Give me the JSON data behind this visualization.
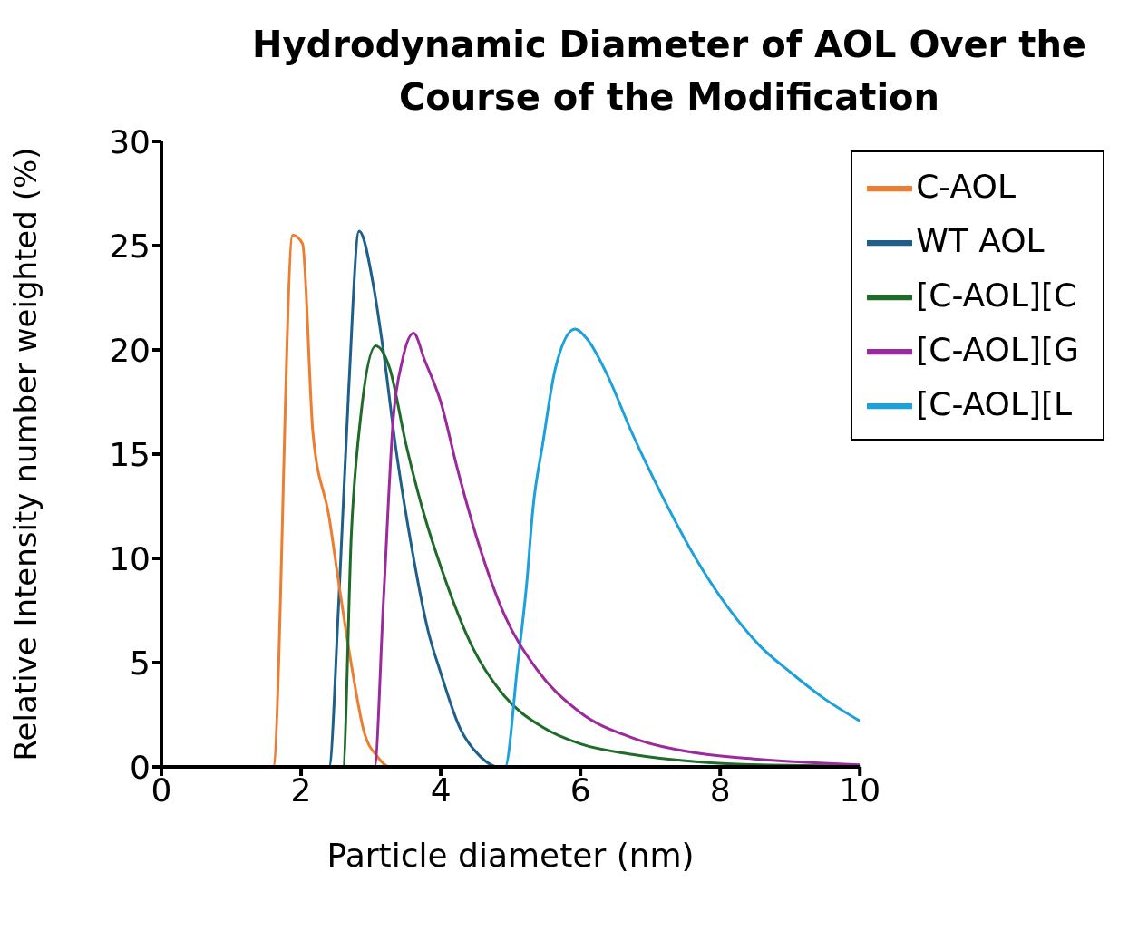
{
  "chart_data": {
    "type": "line",
    "title": "Hydrodynamic Diameter of AOL Over the Course of the Modification",
    "xlabel": "Particle diameter (nm)",
    "ylabel": "Relative Intensity number weighted (%)",
    "xlim": [
      0,
      10
    ],
    "xticks": [
      0,
      2,
      4,
      6,
      8,
      10
    ],
    "ylim": [
      0,
      30
    ],
    "yticks": [
      0,
      5,
      10,
      15,
      20,
      25,
      30
    ],
    "grid": false,
    "legend": "top right",
    "marker": "none",
    "line_style": "solid",
    "series": [
      {
        "name": "WT AOL",
        "color": "#1f5f8b",
        "x": [
          0.2,
          2.4,
          2.54,
          2.68,
          2.83,
          3.04,
          3.18,
          3.36,
          3.59,
          3.82,
          4.0,
          4.27,
          4.55,
          4.82,
          10
        ],
        "values": [
          0,
          0,
          8,
          18,
          25.7,
          23,
          19.9,
          15.2,
          10.4,
          6.5,
          4.5,
          1.9,
          0.55,
          0,
          0
        ]
      },
      {
        "name": "C-AOL",
        "color": "#ed7d31",
        "x": [
          0.2,
          1.6,
          1.88,
          2.02,
          2.17,
          2.4,
          2.54,
          2.72,
          2.9,
          3.09,
          3.27,
          10
        ],
        "values": [
          0,
          0,
          25.5,
          25.1,
          16,
          12,
          8.8,
          4.9,
          1.7,
          0.5,
          0,
          0
        ]
      },
      {
        "name": "[C-AOL][C",
        "color": "#1e6b2a",
        "x": [
          0.2,
          2.6,
          2.72,
          2.86,
          3.07,
          3.27,
          3.5,
          3.77,
          4.0,
          4.46,
          4.91,
          5.46,
          6.0,
          6.74,
          7.65,
          8.57,
          10
        ],
        "values": [
          0,
          0,
          11.2,
          17,
          20.2,
          19.1,
          15.5,
          12,
          9.6,
          5.7,
          3.4,
          1.9,
          1.1,
          0.6,
          0.25,
          0.1,
          0.05
        ]
      },
      {
        "name": "[C-AOL][L",
        "color": "#1ca1dc",
        "x": [
          0.2,
          4.92,
          5.1,
          5.23,
          5.32,
          5.46,
          5.64,
          5.92,
          6.1,
          6.37,
          6.74,
          7.2,
          7.65,
          8.1,
          8.57,
          9.02,
          9.48,
          10
        ],
        "values": [
          0,
          0,
          4.9,
          8.8,
          12.4,
          15.5,
          19.1,
          21,
          20.5,
          18.9,
          16,
          12.8,
          10,
          7.7,
          5.8,
          4.5,
          3.3,
          2.2
        ]
      },
      {
        "name": "[C-AOL][G",
        "color": "#9b2a9c",
        "x": [
          0.2,
          3.05,
          3.18,
          3.32,
          3.45,
          3.61,
          3.77,
          4.0,
          4.23,
          4.46,
          4.91,
          5.37,
          6.0,
          6.74,
          7.65,
          8.57,
          10
        ],
        "values": [
          0,
          0,
          8,
          16.7,
          19.5,
          20.8,
          19.5,
          17.5,
          14.4,
          11.6,
          7.3,
          4.7,
          2.6,
          1.4,
          0.67,
          0.36,
          0.1
        ]
      }
    ]
  }
}
